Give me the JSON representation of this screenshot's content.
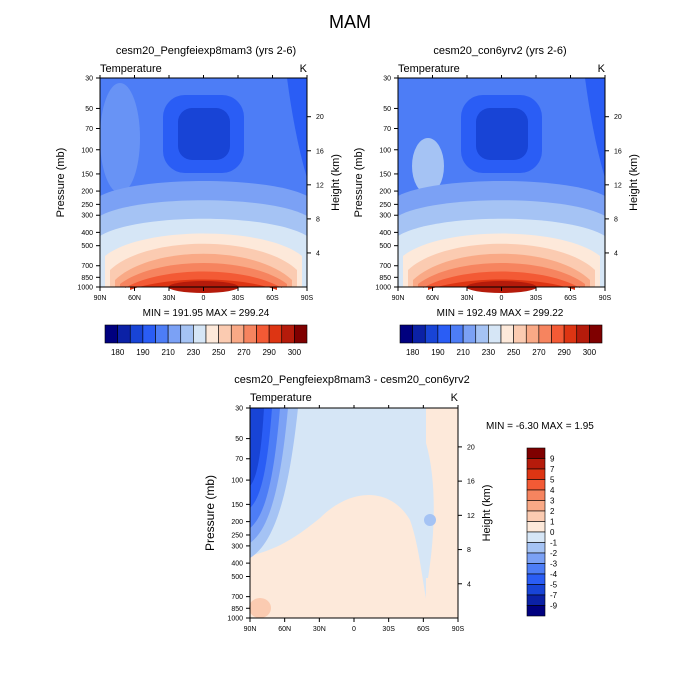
{
  "figure": {
    "title": "MAM",
    "common": {
      "variable": "Temperature",
      "units": "K",
      "ylabel_left": "Pressure (mb)",
      "ylabel_right": "Height (km)",
      "pressure_ticks": [
        "30",
        "50",
        "70",
        "100",
        "150",
        "200",
        "250",
        "300",
        "400",
        "500",
        "700",
        "850",
        "1000"
      ],
      "height_ticks": [
        "4",
        "8",
        "12",
        "16",
        "20"
      ],
      "lat_ticks": [
        "90N",
        "60N",
        "30N",
        "0",
        "30S",
        "60S",
        "90S"
      ]
    },
    "colors": {
      "cool_palette": [
        "#00007f",
        "#0b21a6",
        "#1844d6",
        "#2a5df5",
        "#4d7df6",
        "#7ba1f5",
        "#a5c3f4",
        "#d6e6f6"
      ],
      "warm_palette": [
        "#fde9da",
        "#fbcbb1",
        "#f9a986",
        "#f6845f",
        "#f35a35",
        "#dd3513",
        "#b51b0b",
        "#7f0000"
      ]
    }
  },
  "chart_data": [
    {
      "type": "heatmap",
      "title": "cesm20_Pengfeiexp8mam3 (yrs 2-6)",
      "min_max_text": "MIN = 191.95   MAX = 299.24",
      "min": 191.95,
      "max": 299.24,
      "contour_levels": [
        180,
        190,
        200,
        210,
        220,
        230,
        240,
        250,
        260,
        270,
        280,
        290,
        300
      ],
      "colorbar_labels": [
        "180",
        "190",
        "210",
        "230",
        "250",
        "270",
        "290",
        "300"
      ]
    },
    {
      "type": "heatmap",
      "title": "cesm20_con6yrv2 (yrs 2-6)",
      "min_max_text": "MIN = 192.49   MAX = 299.22",
      "min": 192.49,
      "max": 299.22,
      "contour_levels": [
        180,
        190,
        200,
        210,
        220,
        230,
        240,
        250,
        260,
        270,
        280,
        290,
        300
      ],
      "colorbar_labels": [
        "180",
        "190",
        "210",
        "230",
        "250",
        "270",
        "290",
        "300"
      ]
    },
    {
      "type": "heatmap",
      "title": "cesm20_Pengfeiexp8mam3 - cesm20_con6yrv2",
      "min_max_text": "MIN =  -6.30  MAX =   1.95",
      "min": -6.3,
      "max": 1.95,
      "contour_levels": [
        -9,
        -7,
        -5,
        -4,
        -3,
        -2,
        -1,
        0,
        1,
        2,
        3,
        4,
        5,
        7,
        9
      ],
      "colorbar_labels": [
        "9",
        "7",
        "5",
        "4",
        "3",
        "2",
        "1",
        "0",
        "-1",
        "-2",
        "-3",
        "-4",
        "-5",
        "-7",
        "-9"
      ]
    }
  ]
}
